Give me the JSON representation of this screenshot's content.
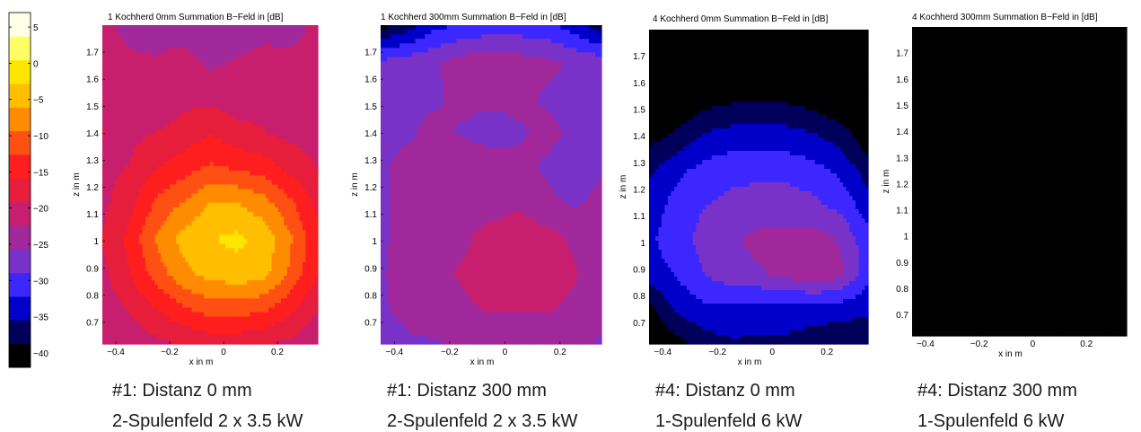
{
  "colorbar": {
    "min": -42,
    "max": 7,
    "ticks": [
      5,
      0,
      -5,
      -10,
      -15,
      -20,
      -25,
      -30,
      -35,
      -40
    ],
    "colormap": [
      "#000000",
      "#00005a",
      "#0000c8",
      "#3c28ff",
      "#7832c8",
      "#a0289b",
      "#c81e6e",
      "#e61e3c",
      "#ff1e1e",
      "#ff5014",
      "#ff8c00",
      "#ffbe00",
      "#ffe600",
      "#ffff64",
      "#ffffe6"
    ]
  },
  "chart_data": [
    {
      "type": "heatmap",
      "title": "1 Kochherd 0mm Summation B−Feld in [dB]",
      "xlabel": "x in m",
      "ylabel": "z in m",
      "xlim": [
        -0.45,
        0.35
      ],
      "ylim": [
        0.62,
        1.8
      ],
      "xticks": [
        "−0.4",
        "−0.2",
        "0",
        "0.2"
      ],
      "yticks": [
        "0.7",
        "0.8",
        "0.9",
        "1",
        "1.1",
        "1.2",
        "1.3",
        "1.4",
        "1.5",
        "1.6",
        "1.7"
      ],
      "x": [
        -0.45,
        -0.35,
        -0.25,
        -0.15,
        -0.05,
        0.05,
        0.15,
        0.25,
        0.35
      ],
      "z": [
        0.62,
        0.75,
        0.88,
        1.01,
        1.14,
        1.27,
        1.4,
        1.53,
        1.66,
        1.8
      ],
      "values": [
        [
          -22,
          -21,
          -20,
          -19,
          -18,
          -18,
          -19,
          -20,
          -22
        ],
        [
          -21,
          -19,
          -16,
          -13,
          -11,
          -11,
          -12,
          -15,
          -19
        ],
        [
          -20,
          -16,
          -11,
          -7,
          -5,
          -4,
          -5,
          -10,
          -16
        ],
        [
          -19,
          -15,
          -9,
          -5,
          -3,
          -2,
          -4,
          -9,
          -15
        ],
        [
          -20,
          -17,
          -12,
          -9,
          -6,
          -6,
          -8,
          -12,
          -17
        ],
        [
          -20,
          -19,
          -16,
          -14,
          -12,
          -13,
          -14,
          -17,
          -19
        ],
        [
          -19,
          -20,
          -19,
          -18,
          -16,
          -18,
          -19,
          -20,
          -21
        ],
        [
          -20,
          -21,
          -22,
          -20,
          -20,
          -21,
          -20,
          -22,
          -21
        ],
        [
          -21,
          -22,
          -22,
          -21,
          -23,
          -22,
          -21,
          -22,
          -22
        ],
        [
          -22,
          -23,
          -24,
          -24,
          -25,
          -25,
          -24,
          -23,
          -22
        ]
      ]
    },
    {
      "type": "heatmap",
      "title": "1 Kochherd 300mm Summation B−Feld in [dB]",
      "xlabel": "x in m",
      "ylabel": "z in m",
      "xlim": [
        -0.45,
        0.35
      ],
      "ylim": [
        0.62,
        1.8
      ],
      "xticks": [
        "−0.4",
        "−0.2",
        "0",
        "0.2"
      ],
      "yticks": [
        "0.7",
        "0.8",
        "0.9",
        "1",
        "1.1",
        "1.2",
        "1.3",
        "1.4",
        "1.5",
        "1.6",
        "1.7"
      ],
      "x": [
        -0.45,
        -0.35,
        -0.25,
        -0.15,
        -0.05,
        0.05,
        0.15,
        0.25,
        0.35
      ],
      "z": [
        0.62,
        0.75,
        0.88,
        1.01,
        1.14,
        1.27,
        1.4,
        1.53,
        1.66,
        1.8
      ],
      "values": [
        [
          -27,
          -26,
          -26,
          -25,
          -25,
          -25,
          -25,
          -25,
          -26
        ],
        [
          -26,
          -25,
          -24,
          -23,
          -22,
          -22,
          -22,
          -23,
          -25
        ],
        [
          -26,
          -24,
          -23,
          -22,
          -21,
          -21,
          -21,
          -22,
          -24
        ],
        [
          -26,
          -25,
          -24,
          -23,
          -21,
          -20,
          -21,
          -23,
          -24
        ],
        [
          -26,
          -25,
          -25,
          -24,
          -24,
          -23,
          -25,
          -26,
          -25
        ],
        [
          -26,
          -25,
          -24,
          -23,
          -24,
          -25,
          -26,
          -27,
          -26
        ],
        [
          -26,
          -26,
          -25,
          -26,
          -27,
          -26,
          -25,
          -26,
          -27
        ],
        [
          -27,
          -26,
          -26,
          -25,
          -25,
          -25,
          -26,
          -27,
          -27
        ],
        [
          -28,
          -27,
          -26,
          -24,
          -23,
          -24,
          -25,
          -26,
          -27
        ],
        [
          -40,
          -37,
          -33,
          -32,
          -31,
          -31,
          -31,
          -34,
          -38
        ]
      ]
    },
    {
      "type": "heatmap",
      "title": "4 Kochherd 0mm Summation B−Feld in [dB]",
      "xlabel": "x in m",
      "ylabel": "z in m",
      "xlim": [
        -0.45,
        0.35
      ],
      "ylim": [
        0.62,
        1.8
      ],
      "xticks": [
        "−0.4",
        "−0.2",
        "0",
        "0.2"
      ],
      "yticks": [
        "0.7",
        "0.8",
        "0.9",
        "1",
        "1.1",
        "1.2",
        "1.3",
        "1.4",
        "1.5",
        "1.6",
        "1.7"
      ],
      "x": [
        -0.45,
        -0.35,
        -0.25,
        -0.15,
        -0.05,
        0.05,
        0.15,
        0.25,
        0.35
      ],
      "z": [
        0.62,
        0.75,
        0.88,
        1.01,
        1.14,
        1.27,
        1.4,
        1.53,
        1.66,
        1.8
      ],
      "values": [
        [
          -42,
          -40,
          -37,
          -36,
          -36,
          -36,
          -37,
          -38,
          -38
        ],
        [
          -40,
          -35,
          -33,
          -33,
          -34,
          -34,
          -34,
          -34,
          -35
        ],
        [
          -34,
          -32,
          -29,
          -27,
          -26,
          -25,
          -23,
          -25,
          -31
        ],
        [
          -33,
          -30,
          -28,
          -26,
          -25,
          -25,
          -24,
          -26,
          -31
        ],
        [
          -34,
          -31,
          -29,
          -28,
          -27,
          -27,
          -28,
          -30,
          -34
        ],
        [
          -36,
          -33,
          -31,
          -30,
          -30,
          -30,
          -31,
          -33,
          -37
        ],
        [
          -40,
          -38,
          -35,
          -34,
          -34,
          -34,
          -35,
          -37,
          -41
        ],
        [
          -42,
          -42,
          -40,
          -39,
          -39,
          -39,
          -40,
          -42,
          -42
        ],
        [
          -42,
          -42,
          -42,
          -42,
          -42,
          -42,
          -42,
          -42,
          -42
        ],
        [
          -42,
          -42,
          -42,
          -42,
          -42,
          -42,
          -42,
          -42,
          -42
        ]
      ]
    },
    {
      "type": "heatmap",
      "title": "4 Kochherd 300mm Summation B−Feld in [dB]",
      "xlabel": "x in m",
      "ylabel": "z in m",
      "xlim": [
        -0.45,
        0.35
      ],
      "ylim": [
        0.62,
        1.8
      ],
      "xticks": [
        "−0.4",
        "−0.2",
        "0",
        "0.2"
      ],
      "yticks": [
        "0.7",
        "0.8",
        "0.9",
        "1",
        "1.1",
        "1.2",
        "1.3",
        "1.4",
        "1.5",
        "1.6",
        "1.7"
      ],
      "x": [
        -0.45,
        -0.35,
        -0.25,
        -0.15,
        -0.05,
        0.05,
        0.15,
        0.25,
        0.35
      ],
      "z": [
        0.62,
        0.75,
        0.88,
        1.01,
        1.14,
        1.27,
        1.4,
        1.53,
        1.66,
        1.8
      ],
      "values": [
        [
          -42,
          -42,
          -42,
          -42,
          -42,
          -42,
          -42,
          -42,
          -42
        ],
        [
          -42,
          -42,
          -42,
          -42,
          -42,
          -42,
          -42,
          -42,
          -42
        ],
        [
          -42,
          -42,
          -42,
          -42,
          -42,
          -42,
          -42,
          -42,
          -42
        ],
        [
          -42,
          -42,
          -42,
          -42,
          -42,
          -42,
          -42,
          -42,
          -42
        ],
        [
          -42,
          -42,
          -42,
          -42,
          -42,
          -42,
          -42,
          -42,
          -42
        ],
        [
          -42,
          -42,
          -42,
          -42,
          -42,
          -42,
          -42,
          -42,
          -42
        ],
        [
          -42,
          -42,
          -42,
          -42,
          -42,
          -42,
          -42,
          -42,
          -42
        ],
        [
          -42,
          -42,
          -42,
          -42,
          -42,
          -42,
          -42,
          -42,
          -42
        ],
        [
          -42,
          -42,
          -42,
          -42,
          -42,
          -42,
          -42,
          -42,
          -42
        ],
        [
          -42,
          -42,
          -42,
          -42,
          -42,
          -42,
          -42,
          -42,
          -42
        ]
      ]
    }
  ],
  "captions": [
    {
      "line1": "#1: Distanz 0 mm",
      "line2": "2-Spulenfeld 2 x 3.5 kW"
    },
    {
      "line1": "#1: Distanz 300 mm",
      "line2": "2-Spulenfeld 2 x 3.5 kW"
    },
    {
      "line1": "#4: Distanz 0 mm",
      "line2": "1-Spulenfeld 6 kW"
    },
    {
      "line1": "#4: Distanz 300 mm",
      "line2": "1-Spulenfeld 6 kW"
    }
  ]
}
